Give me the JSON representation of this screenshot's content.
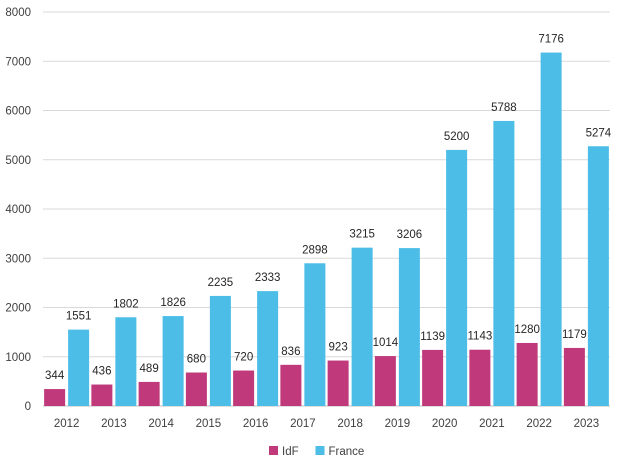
{
  "chart_data": {
    "type": "bar",
    "categories": [
      "2012",
      "2013",
      "2014",
      "2015",
      "2016",
      "2017",
      "2018",
      "2019",
      "2020",
      "2021",
      "2022",
      "2023"
    ],
    "series": [
      {
        "name": "IdF",
        "color": "#c0397b",
        "values": [
          344,
          436,
          489,
          680,
          720,
          836,
          923,
          1014,
          1139,
          1143,
          1280,
          1179
        ]
      },
      {
        "name": "France",
        "color": "#4bbde6",
        "values": [
          1551,
          1802,
          1826,
          2235,
          2333,
          2898,
          3215,
          3206,
          5200,
          5788,
          7176,
          5274
        ]
      }
    ],
    "ylim": [
      0,
      8000
    ],
    "yticks": [
      0,
      1000,
      2000,
      3000,
      4000,
      5000,
      6000,
      7000,
      8000
    ],
    "grid": true,
    "legend_position": "bottom"
  }
}
